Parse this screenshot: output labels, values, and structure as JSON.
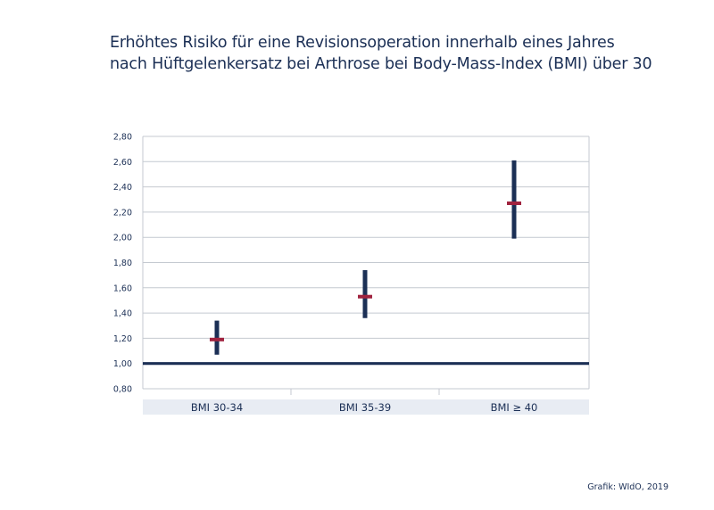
{
  "title_lines": [
    "Erhöhtes Risiko für eine Revisionsoperation innerhalb eines Jahres",
    "nach Hüftgelenkersatz bei Arthrose bei Body-Mass-Index (BMI) über 30"
  ],
  "source": "Grafik: WIdO, 2019",
  "colors": {
    "navy": "#1b2f55",
    "estimate": "#a0233f",
    "grid": "#c4c9d0",
    "band": "#e8ecf3"
  },
  "chart_data": {
    "type": "scatter",
    "title": "Erhöhtes Risiko für eine Revisionsoperation innerhalb eines Jahres nach Hüftgelenkersatz bei Arthrose bei Body-Mass-Index (BMI) über 30",
    "xlabel": "",
    "ylabel": "",
    "categories": [
      "BMI 30-34",
      "BMI 35-39",
      "BMI ≥ 40"
    ],
    "estimate": [
      1.19,
      1.53,
      2.27
    ],
    "ci_lower": [
      1.07,
      1.36,
      1.99
    ],
    "ci_upper": [
      1.34,
      1.74,
      2.61
    ],
    "reference_line": 1.0,
    "ylim": [
      0.8,
      2.8
    ],
    "yticks": [
      "0,80",
      "1,00",
      "1,20",
      "1,40",
      "1,60",
      "1,80",
      "2,00",
      "2,20",
      "2,40",
      "2,60",
      "2,80"
    ],
    "grid": true,
    "legend": "none"
  }
}
